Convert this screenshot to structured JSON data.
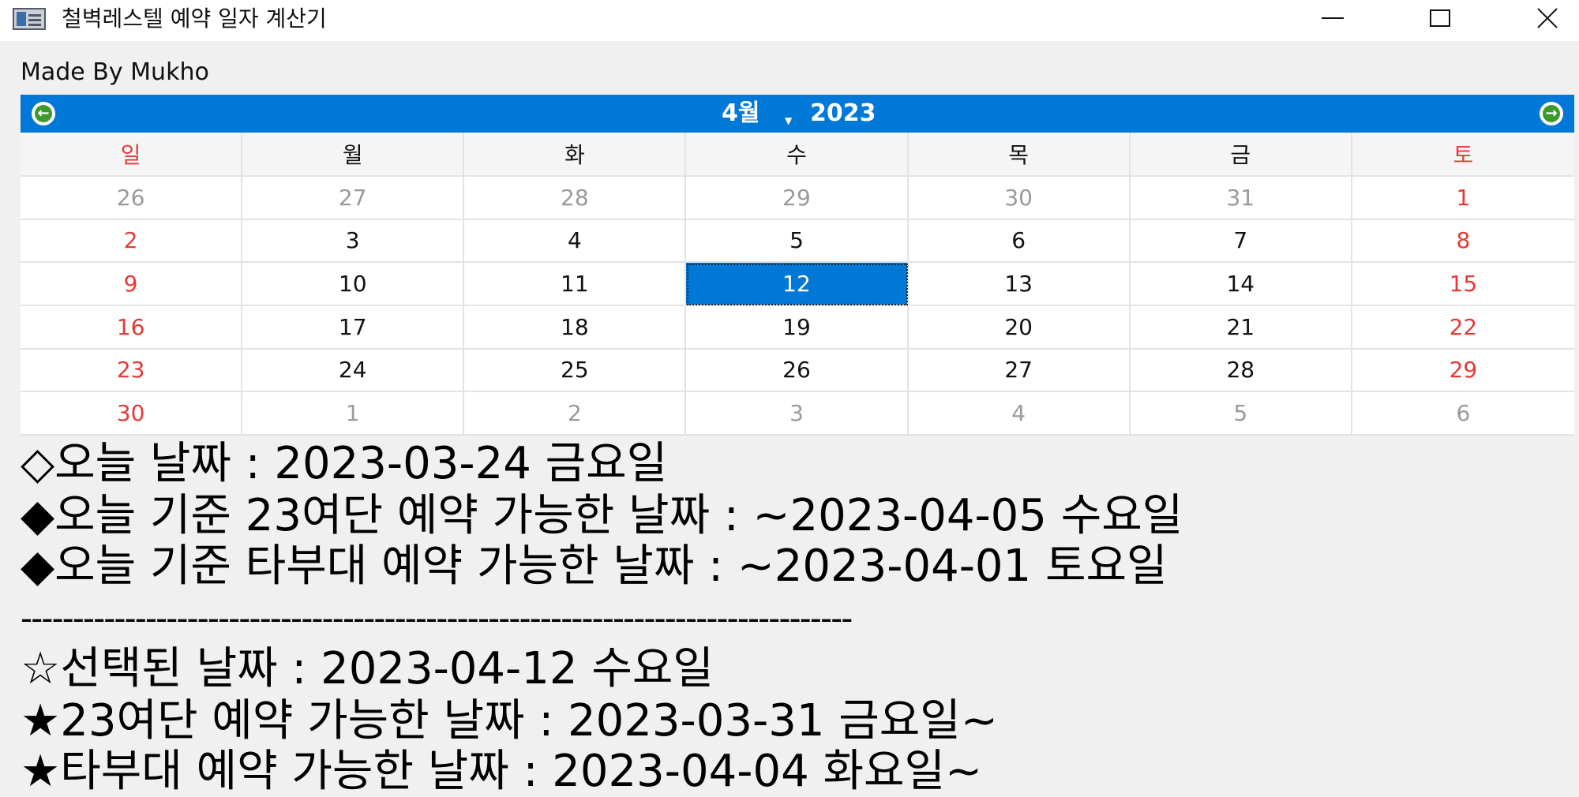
{
  "window": {
    "title": "철벽레스텔 예약 일자 계산기"
  },
  "credit": "Made By Mukho",
  "calendar": {
    "month": "4월",
    "year": "2023",
    "weekdays": [
      "일",
      "월",
      "화",
      "수",
      "목",
      "금",
      "토"
    ],
    "weeks": [
      [
        "26",
        "27",
        "28",
        "29",
        "30",
        "31",
        "1"
      ],
      [
        "2",
        "3",
        "4",
        "5",
        "6",
        "7",
        "8"
      ],
      [
        "9",
        "10",
        "11",
        "12",
        "13",
        "14",
        "15"
      ],
      [
        "16",
        "17",
        "18",
        "19",
        "20",
        "21",
        "22"
      ],
      [
        "23",
        "24",
        "25",
        "26",
        "27",
        "28",
        "29"
      ],
      [
        "30",
        "1",
        "2",
        "3",
        "4",
        "5",
        "6"
      ]
    ],
    "selected": "12"
  },
  "info": {
    "today": "◇오늘 날짜 : 2023-03-24 금요일",
    "today_23": "◆오늘 기준 23여단 예약 가능한 날짜 : ~2023-04-05 수요일",
    "today_other": "◆오늘 기준 타부대 예약 가능한 날짜 : ~2023-04-01 토요일",
    "divider": "--------------------------------------------------------------------------------",
    "selected": "☆선택된 날짜 : 2023-04-12 수요일",
    "selected_23": "★23여단 예약 가능한 날짜 : 2023-03-31 금요일~",
    "selected_other": "★타부대 예약 가능한 날짜 : 2023-04-04 화요일~"
  }
}
